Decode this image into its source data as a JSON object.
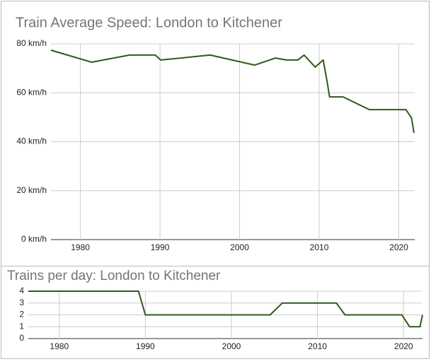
{
  "chart_data": [
    {
      "type": "line",
      "title": "Train Average Speed: London to Kitchener",
      "x": [
        1976.3,
        1981.4,
        1986.2,
        1989.4,
        1990.1,
        1996.3,
        2001.9,
        2004.5,
        2005.9,
        2007.3,
        2008.1,
        2009.5,
        2010.5,
        2011.0,
        2011.3,
        2013.0,
        2016.3,
        2020.9,
        2021.6,
        2021.9
      ],
      "values": [
        77.4,
        72.5,
        75.4,
        75.4,
        73.4,
        75.4,
        71.3,
        74.2,
        73.4,
        73.4,
        75.4,
        70.5,
        73.4,
        64.4,
        58.3,
        58.3,
        53.1,
        53.1,
        49.7,
        43.6
      ],
      "color": "#2e5a1c",
      "xlim": [
        1976.3,
        2022
      ],
      "xticks": [
        1980,
        1990,
        2000,
        2010,
        2020
      ],
      "ylim": [
        0,
        80
      ],
      "yticks": [
        {
          "value": 0,
          "label": "0 km/h"
        },
        {
          "value": 20,
          "label": "20 km/h"
        },
        {
          "value": 40,
          "label": "40 km/h"
        },
        {
          "value": 60,
          "label": "60 km/h"
        },
        {
          "value": 80,
          "label": "80 km/h"
        }
      ],
      "grid": true
    },
    {
      "type": "line",
      "title": "Trains per day: London to Kitchener",
      "x": [
        1976.4,
        1989.2,
        1990.0,
        2004.5,
        2005.9,
        2012.2,
        2013.2,
        2019.8,
        2020.7,
        2021.9,
        2022.2
      ],
      "values": [
        4,
        4,
        2,
        2,
        3,
        3,
        2,
        2,
        1,
        1,
        2
      ],
      "color": "#2e5a1c",
      "xlim": [
        1976.4,
        2022.2
      ],
      "xticks": [
        1980,
        1990,
        2000,
        2010,
        2020
      ],
      "ylim": [
        0,
        4
      ],
      "yticks": [
        0,
        1,
        2,
        3,
        4
      ],
      "grid": true
    }
  ]
}
